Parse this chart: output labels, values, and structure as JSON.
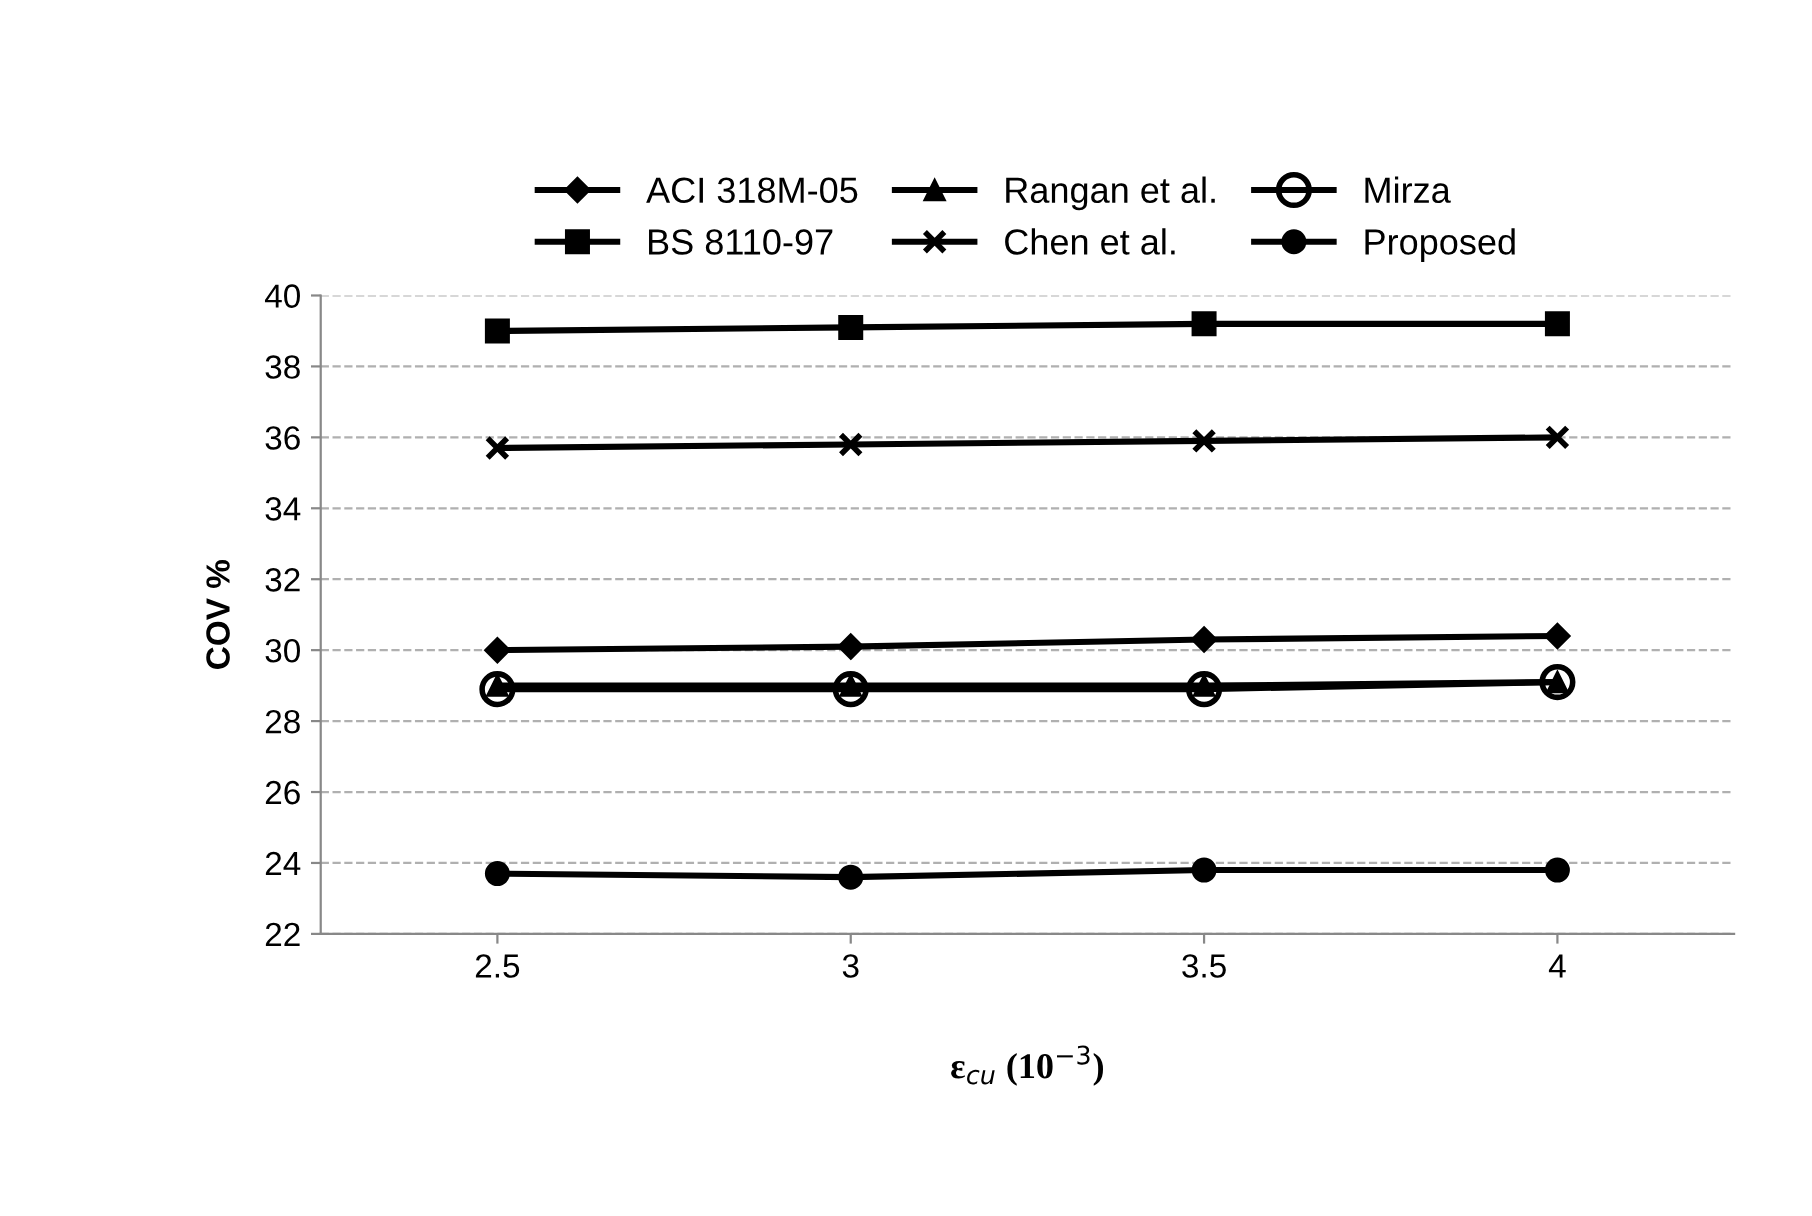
{
  "chart_data": {
    "type": "line",
    "xlabel": "ε$_{cu}$ (10$^{−3}$)",
    "ylabel": "COV %",
    "categories": [
      "2.5",
      "3",
      "3.5",
      "4"
    ],
    "series": [
      {
        "name": "ACI 318M-05",
        "color": "#000000",
        "marker": "diamond",
        "values": [
          30.0,
          30.1,
          30.3,
          30.4
        ]
      },
      {
        "name": "BS 8110-97",
        "color": "#000000",
        "marker": "square",
        "values": [
          39.0,
          39.1,
          39.2,
          39.2
        ]
      },
      {
        "name": "Rangan et al.",
        "color": "#000000",
        "marker": "triangle",
        "values": [
          29.0,
          29.0,
          29.0,
          29.1
        ]
      },
      {
        "name": "Chen et al.",
        "color": "#000000",
        "marker": "cross",
        "values": [
          35.7,
          35.8,
          35.9,
          36.0
        ]
      },
      {
        "name": "Mirza",
        "color": "#000000",
        "marker": "open circle",
        "values": [
          28.9,
          28.9,
          28.9,
          29.1
        ]
      },
      {
        "name": "Proposed",
        "color": "#000000",
        "marker": "circle",
        "values": [
          23.7,
          23.6,
          23.8,
          23.8
        ]
      }
    ],
    "ylim": [
      22,
      40
    ],
    "yticks": [
      22,
      24,
      26,
      28,
      30,
      32,
      34,
      36,
      38,
      40
    ],
    "grid": "y",
    "legend": "top",
    "line_style": "solid"
  }
}
